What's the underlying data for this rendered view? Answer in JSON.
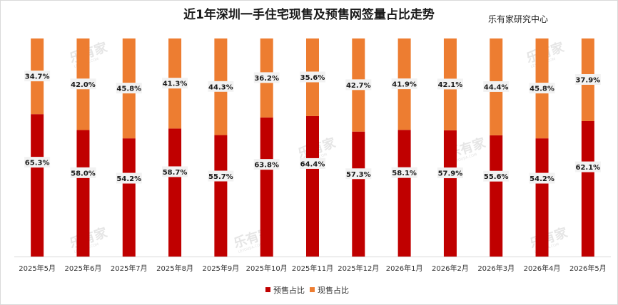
{
  "header": {
    "title": "近1年深圳一手住宅现售及预售网签量占比走势",
    "source": "乐有家研究中心"
  },
  "watermark": {
    "text": "乐有家",
    "sub": "LEYOUJIA.COM"
  },
  "colors": {
    "presale": "#c00000",
    "spot": "#ed7d31",
    "label_bg": "#f2f2f2"
  },
  "chart_data": {
    "type": "bar",
    "stacked": "percent",
    "categories": [
      "2025年5月",
      "2025年6月",
      "2025年7月",
      "2025年8月",
      "2025年9月",
      "2025年10月",
      "2025年11月",
      "2025年12月",
      "2026年1月",
      "2026年2月",
      "2026年3月",
      "2026年4月",
      "2026年5月"
    ],
    "series": [
      {
        "name": "预售占比",
        "values": [
          65.3,
          58.0,
          54.2,
          58.7,
          55.7,
          63.8,
          64.4,
          57.3,
          58.1,
          57.9,
          55.6,
          54.2,
          62.1
        ],
        "labels": [
          "65.3%",
          "58.0%",
          "54.2%",
          "58.7%",
          "55.7%",
          "63.8%",
          "64.4%",
          "57.3%",
          "58.1%",
          "57.9%",
          "55.6%",
          "54.2%",
          "62.1%"
        ]
      },
      {
        "name": "现售占比",
        "values": [
          34.7,
          42.0,
          45.8,
          41.3,
          44.3,
          36.2,
          35.6,
          42.7,
          41.9,
          42.1,
          44.4,
          45.8,
          37.9
        ],
        "labels": [
          "34.7%",
          "42.0%",
          "45.8%",
          "41.3%",
          "44.3%",
          "36.2%",
          "35.6%",
          "42.7%",
          "41.9%",
          "42.1%",
          "44.4%",
          "45.8%",
          "37.9%"
        ]
      }
    ],
    "ylim": [
      0,
      100
    ],
    "grid": false,
    "legend_position": "bottom"
  }
}
